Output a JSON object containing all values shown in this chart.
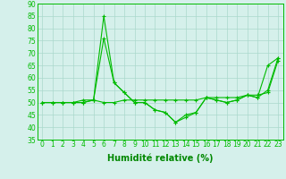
{
  "xlabel": "Humidité relative (%)",
  "x": [
    0,
    1,
    2,
    3,
    4,
    5,
    6,
    7,
    8,
    9,
    10,
    11,
    12,
    13,
    14,
    15,
    16,
    17,
    18,
    19,
    20,
    21,
    22,
    23
  ],
  "line1": [
    50,
    50,
    50,
    50,
    50,
    51,
    85,
    58,
    54,
    50,
    50,
    47,
    46,
    42,
    45,
    46,
    52,
    51,
    50,
    51,
    53,
    52,
    55,
    68
  ],
  "line2": [
    50,
    50,
    50,
    50,
    51,
    51,
    76,
    58,
    54,
    50,
    50,
    47,
    46,
    42,
    44,
    46,
    52,
    51,
    50,
    51,
    53,
    52,
    65,
    68
  ],
  "line3": [
    50,
    50,
    50,
    50,
    50,
    51,
    50,
    50,
    51,
    51,
    51,
    51,
    51,
    51,
    51,
    51,
    52,
    52,
    52,
    52,
    53,
    53,
    54,
    67
  ],
  "line_color": "#00bb00",
  "bg_color": "#d5f0eb",
  "grid_color": "#aad8cc",
  "ylim": [
    35,
    90
  ],
  "yticks": [
    35,
    40,
    45,
    50,
    55,
    60,
    65,
    70,
    75,
    80,
    85,
    90
  ],
  "xticks": [
    0,
    1,
    2,
    3,
    4,
    5,
    6,
    7,
    8,
    9,
    10,
    11,
    12,
    13,
    14,
    15,
    16,
    17,
    18,
    19,
    20,
    21,
    22,
    23
  ],
  "marker": "+",
  "markersize": 3,
  "linewidth": 0.8,
  "xlabel_fontsize": 7,
  "tick_fontsize": 5.5,
  "xlabel_color": "#008800"
}
